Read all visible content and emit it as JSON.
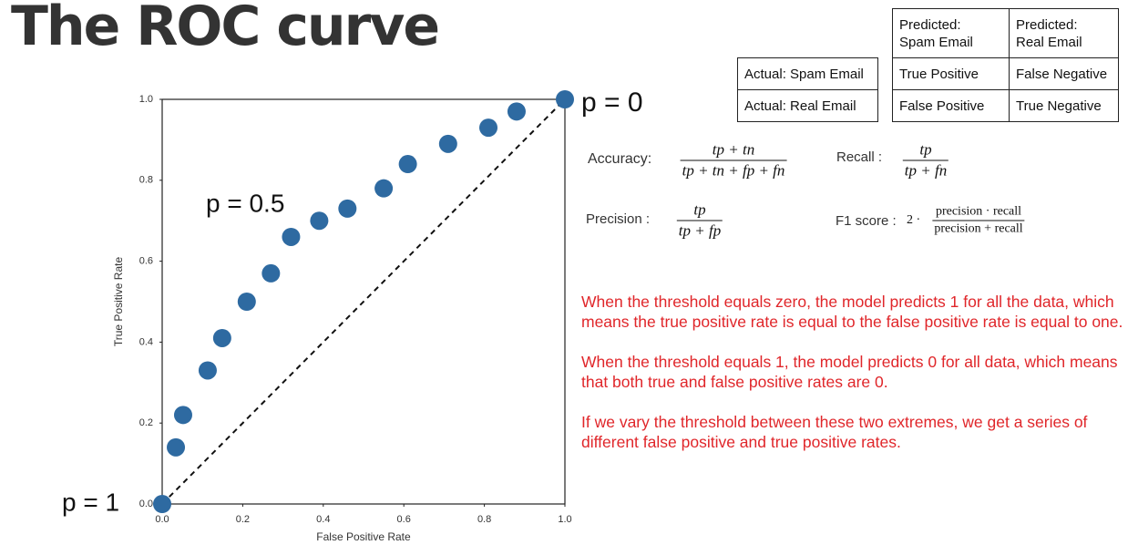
{
  "title": "The ROC curve",
  "chart_data": {
    "type": "scatter",
    "x_label": "False Positive Rate",
    "y_label": "True Positive Rate",
    "x": [
      0.0,
      0.034,
      0.052,
      0.113,
      0.149,
      0.21,
      0.27,
      0.32,
      0.39,
      0.46,
      0.55,
      0.61,
      0.71,
      0.81,
      0.88,
      1.0
    ],
    "values": [
      0.0,
      0.14,
      0.22,
      0.33,
      0.41,
      0.5,
      0.57,
      0.66,
      0.7,
      0.73,
      0.78,
      0.84,
      0.89,
      0.93,
      0.97,
      1.0
    ],
    "color": "#2e6aa1",
    "xlim": [
      0,
      1
    ],
    "ylim": [
      0,
      1
    ],
    "xticks": [
      {
        "value": 0,
        "label": "0.0"
      },
      0.2,
      0.4,
      0.6,
      0.8,
      {
        "value": 1,
        "label": "1.0"
      }
    ],
    "yticks": [
      {
        "value": 0,
        "label": "0.0"
      },
      0.2,
      0.4,
      0.6,
      0.8,
      {
        "value": 1,
        "label": "1.0"
      }
    ],
    "grid": false,
    "annotations": [
      "p = 0",
      "p = 0.5",
      "p = 1"
    ]
  },
  "table": {
    "header": [
      "Predicted:\nSpam Email",
      "Predicted:\nReal Email"
    ],
    "rows": [
      [
        "Actual: Spam Email",
        "True Positive",
        "False Negative"
      ],
      [
        "Actual: Real Email",
        "False Positive",
        "True Negative"
      ]
    ]
  },
  "formulas": [
    {
      "label": "Accuracy:",
      "numerator": "tp + tn",
      "denominator": "tp + tn + fp + fn"
    },
    {
      "label": "Recall :",
      "numerator": "tp",
      "denominator": "tp + fn"
    },
    {
      "label": "Precision :",
      "numerator": "tp",
      "denominator": "tp + fp"
    },
    {
      "label": "F1 score :",
      "prefix": "2 ·",
      "numerator": "precision · recall",
      "denominator": "precision + recall"
    }
  ],
  "notes": [
    "When the threshold equals zero, the model predicts 1 for all the data, which means the true positive rate is equal to the false positive rate is equal to one.",
    "When the threshold equals 1, the model predicts 0 for all data, which means that both true and false positive rates are 0.",
    "If we vary the threshold between these two extremes, we get a series of different false positive and true positive rates."
  ]
}
